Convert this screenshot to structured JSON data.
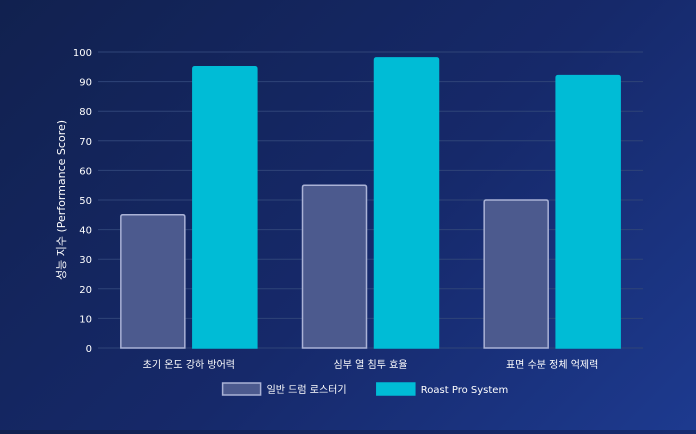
{
  "chart_data": {
    "type": "bar",
    "title": "",
    "xlabel": "",
    "ylabel": "성능 지수 (Performance Score)",
    "ylim": [
      0,
      100
    ],
    "yticks": [
      0,
      10,
      20,
      30,
      40,
      50,
      60,
      70,
      80,
      90,
      100
    ],
    "grid": true,
    "legend_position": "bottom",
    "categories": [
      "초기 온도 강하 방어력",
      "심부 열 침투 효율",
      "표면 수분 정체 억제력"
    ],
    "series": [
      {
        "name": "일반 드럼 로스터기",
        "values": [
          45,
          55,
          50
        ],
        "color": "#4c5a8e",
        "border": "#aab2d6"
      },
      {
        "name": "Roast Pro System",
        "values": [
          95,
          98,
          92
        ],
        "color": "#00bcd6",
        "border": "#00bcd6"
      }
    ]
  },
  "colors": {
    "text": "#ffffff",
    "grid": "#2f4478"
  }
}
